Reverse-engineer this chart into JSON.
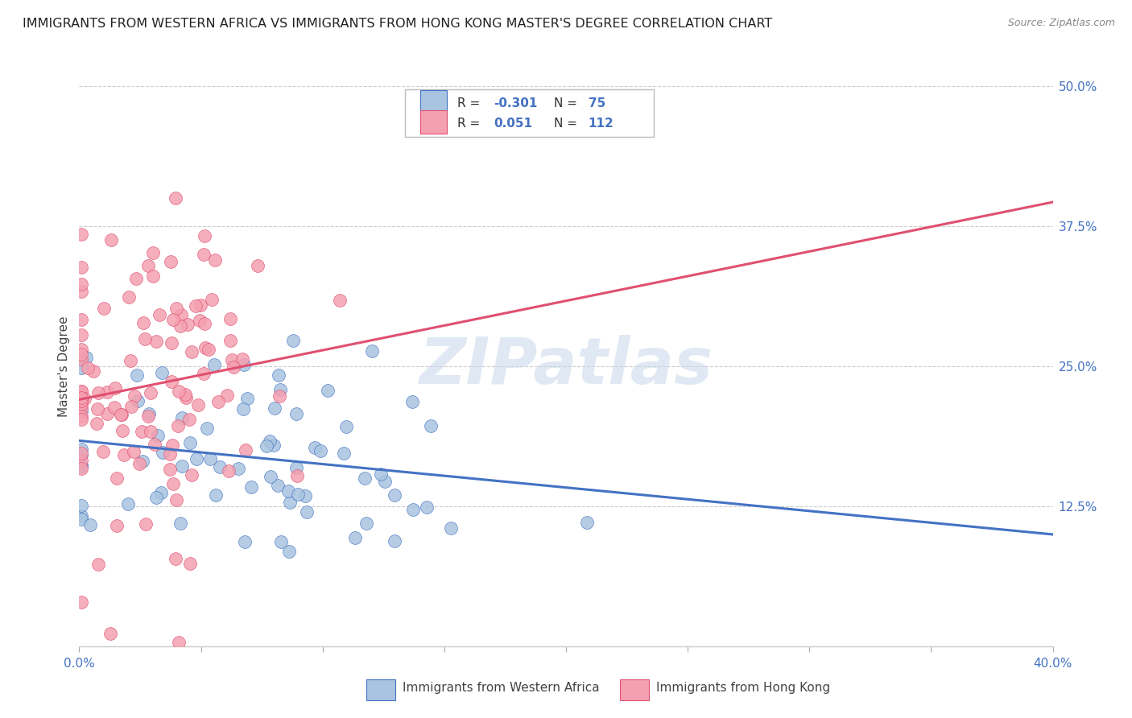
{
  "title": "IMMIGRANTS FROM WESTERN AFRICA VS IMMIGRANTS FROM HONG KONG MASTER'S DEGREE CORRELATION CHART",
  "source": "Source: ZipAtlas.com",
  "ylabel": "Master's Degree",
  "xlim": [
    0.0,
    0.4
  ],
  "ylim": [
    0.0,
    0.5
  ],
  "xticks": [
    0.0,
    0.05,
    0.1,
    0.15,
    0.2,
    0.25,
    0.3,
    0.35,
    0.4
  ],
  "xticklabels_show": [
    "0.0%",
    "",
    "",
    "",
    "",
    "",
    "",
    "",
    "40.0%"
  ],
  "yticks": [
    0.0,
    0.125,
    0.25,
    0.375,
    0.5
  ],
  "yticklabels": [
    "",
    "12.5%",
    "25.0%",
    "37.5%",
    "50.0%"
  ],
  "series1_label": "Immigrants from Western Africa",
  "series2_label": "Immigrants from Hong Kong",
  "series1_R": -0.301,
  "series1_N": 75,
  "series2_R": 0.051,
  "series2_N": 112,
  "series1_color": "#a8c4e0",
  "series2_color": "#f4a0b0",
  "series1_line_color": "#4472c4",
  "series2_line_color": "#e05070",
  "background_color": "#ffffff",
  "watermark": "ZIPatlas",
  "title_fontsize": 11.5,
  "axis_label_fontsize": 11,
  "tick_fontsize": 11,
  "legend_fontsize": 11,
  "seed1": 42,
  "seed2": 99,
  "s1_xmean": 0.06,
  "s1_xstd": 0.055,
  "s1_ymean": 0.175,
  "s1_ystd": 0.05,
  "s2_xmean": 0.025,
  "s2_xstd": 0.028,
  "s2_ymean": 0.235,
  "s2_ystd": 0.075
}
